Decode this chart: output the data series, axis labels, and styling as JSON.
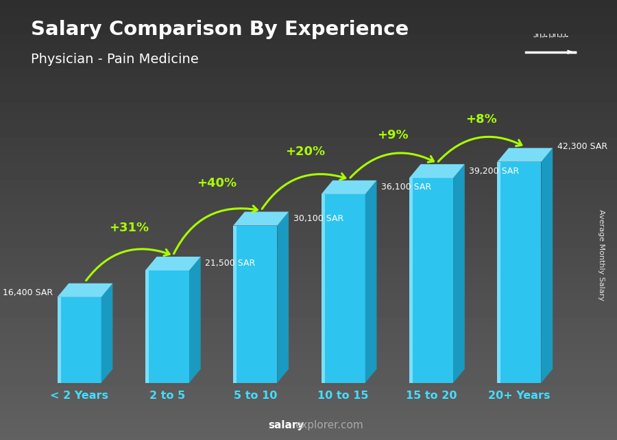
{
  "title": "Salary Comparison By Experience",
  "subtitle": "Physician - Pain Medicine",
  "categories": [
    "< 2 Years",
    "2 to 5",
    "5 to 10",
    "10 to 15",
    "15 to 20",
    "20+ Years"
  ],
  "values": [
    16400,
    21500,
    30100,
    36100,
    39200,
    42300
  ],
  "salary_labels": [
    "16,400 SAR",
    "21,500 SAR",
    "30,100 SAR",
    "36,100 SAR",
    "39,200 SAR",
    "42,300 SAR"
  ],
  "pct_labels": [
    "+31%",
    "+40%",
    "+20%",
    "+9%",
    "+8%"
  ],
  "bar_front": "#2ec4f0",
  "bar_top": "#7addf8",
  "bar_side": "#1a9ac0",
  "bar_highlight": "#a0eaff",
  "bg_dark": "#2a2a2a",
  "bg_mid": "#555555",
  "title_color": "#ffffff",
  "subtitle_color": "#ffffff",
  "salary_color": "#ffffff",
  "pct_color": "#aaff00",
  "xlabel_color": "#44ddff",
  "ylabel": "Average Monthly Salary",
  "footer_bold": "salary",
  "footer_normal": "explorer.com",
  "ylim_max": 48000,
  "flag_color": "#4caf20"
}
